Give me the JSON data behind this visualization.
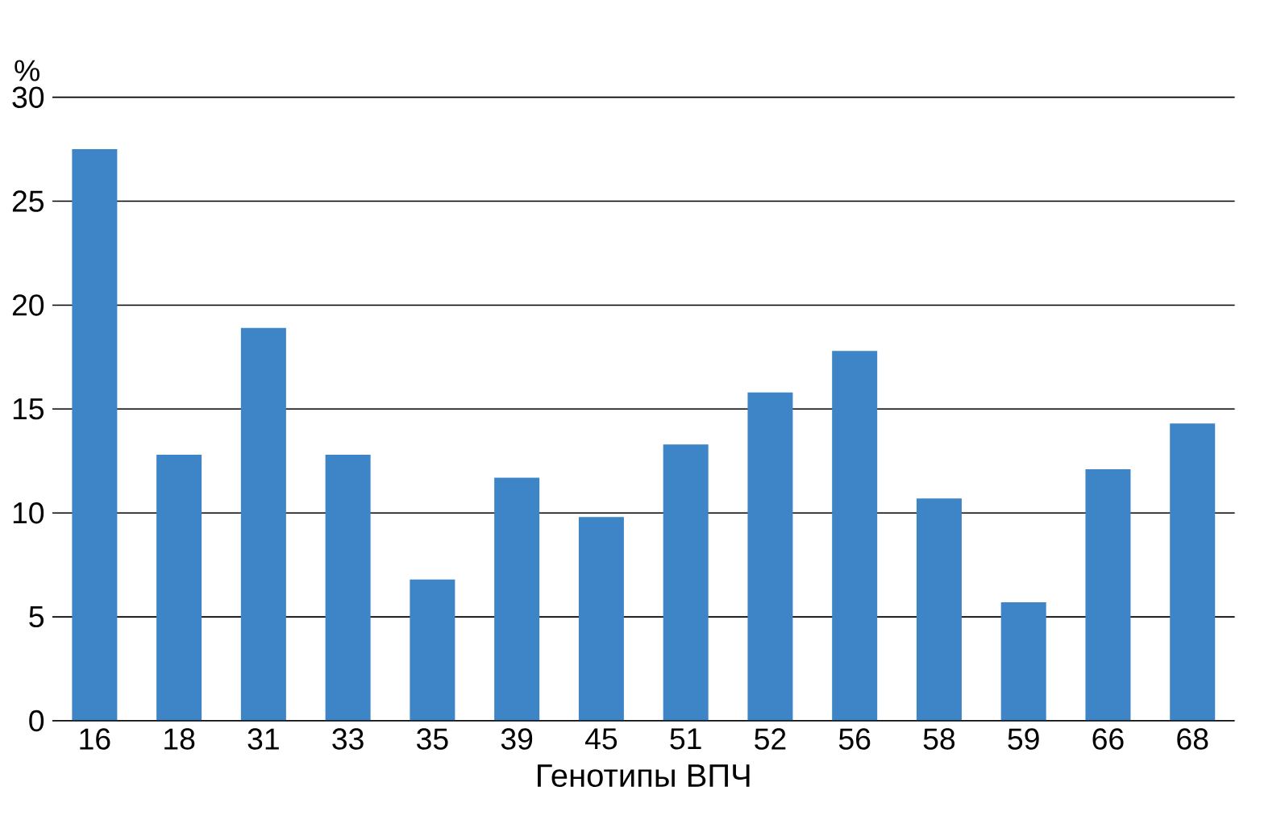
{
  "chart_data": {
    "type": "bar",
    "xlabel": "Генотипы ВПЧ",
    "ylabel": "%",
    "categories": [
      "16",
      "18",
      "31",
      "33",
      "35",
      "39",
      "45",
      "51",
      "52",
      "56",
      "58",
      "59",
      "66",
      "68"
    ],
    "values": [
      27.5,
      12.8,
      18.9,
      12.8,
      6.8,
      11.7,
      9.8,
      13.3,
      15.8,
      17.8,
      10.7,
      5.7,
      12.1,
      14.3
    ],
    "color": "#3d85c6",
    "ylim": [
      0,
      30
    ],
    "yticks": [
      0,
      5,
      10,
      15,
      20,
      25,
      30
    ],
    "grid": "y"
  }
}
